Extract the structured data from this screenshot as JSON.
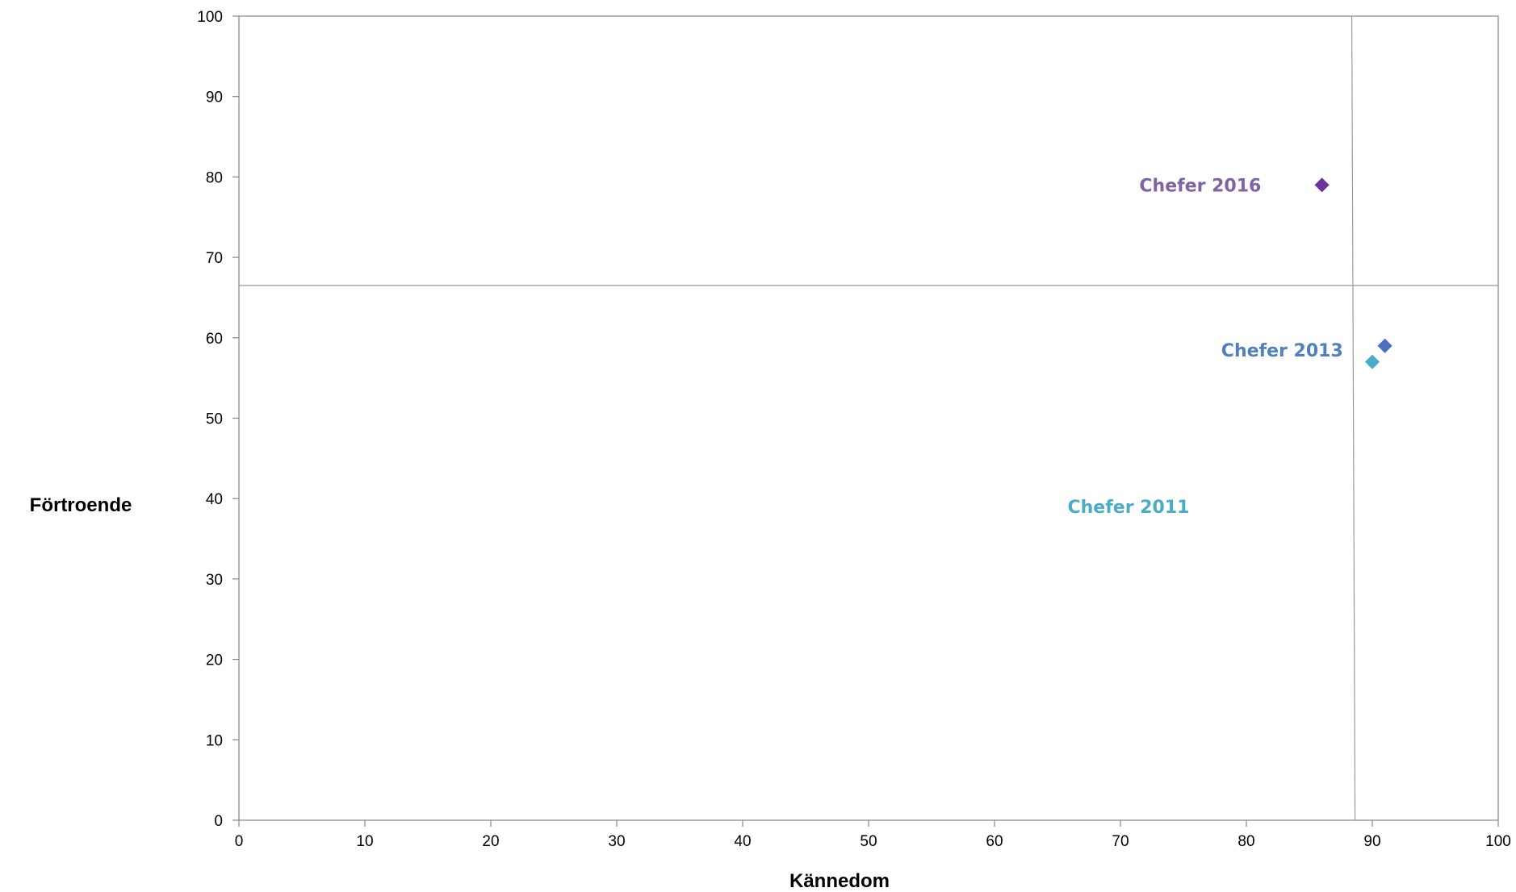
{
  "chart_data": {
    "type": "scatter",
    "title": "",
    "xlabel": "Kännedom",
    "ylabel": "Förtroende",
    "xlim": [
      0,
      100
    ],
    "ylim": [
      0,
      100
    ],
    "x_ticks": [
      "0",
      "10",
      "20",
      "30",
      "40",
      "50",
      "60",
      "70",
      "80",
      "90",
      "100"
    ],
    "y_ticks": [
      "0",
      "10",
      "20",
      "30",
      "40",
      "50",
      "60",
      "70",
      "80",
      "90",
      "100"
    ],
    "grid": false,
    "reference_lines": {
      "vertical_x": 88.5,
      "horizontal_y": 66.5
    },
    "series": [
      {
        "name": "Chefer 2016",
        "x": 86,
        "y": 79,
        "color": "#7030a0",
        "fill": "#7030a0",
        "label_x": 71.5,
        "label_y": 79
      },
      {
        "name": "Chefer 2013",
        "x": 91,
        "y": 59,
        "color": "#4472c4",
        "fill": "#4f6fc0",
        "label_x": 78,
        "label_y": 58.5
      },
      {
        "name": "Chefer 2011",
        "x": 90,
        "y": 57,
        "color": "#4bacc6",
        "fill": "#4bacc6",
        "label_x": 65.8,
        "label_y": 39
      }
    ],
    "label_colors": {
      "Chefer 2016": "#8064a2",
      "Chefer 2013": "#4f81bd",
      "Chefer 2011": "#4bacc6"
    }
  }
}
